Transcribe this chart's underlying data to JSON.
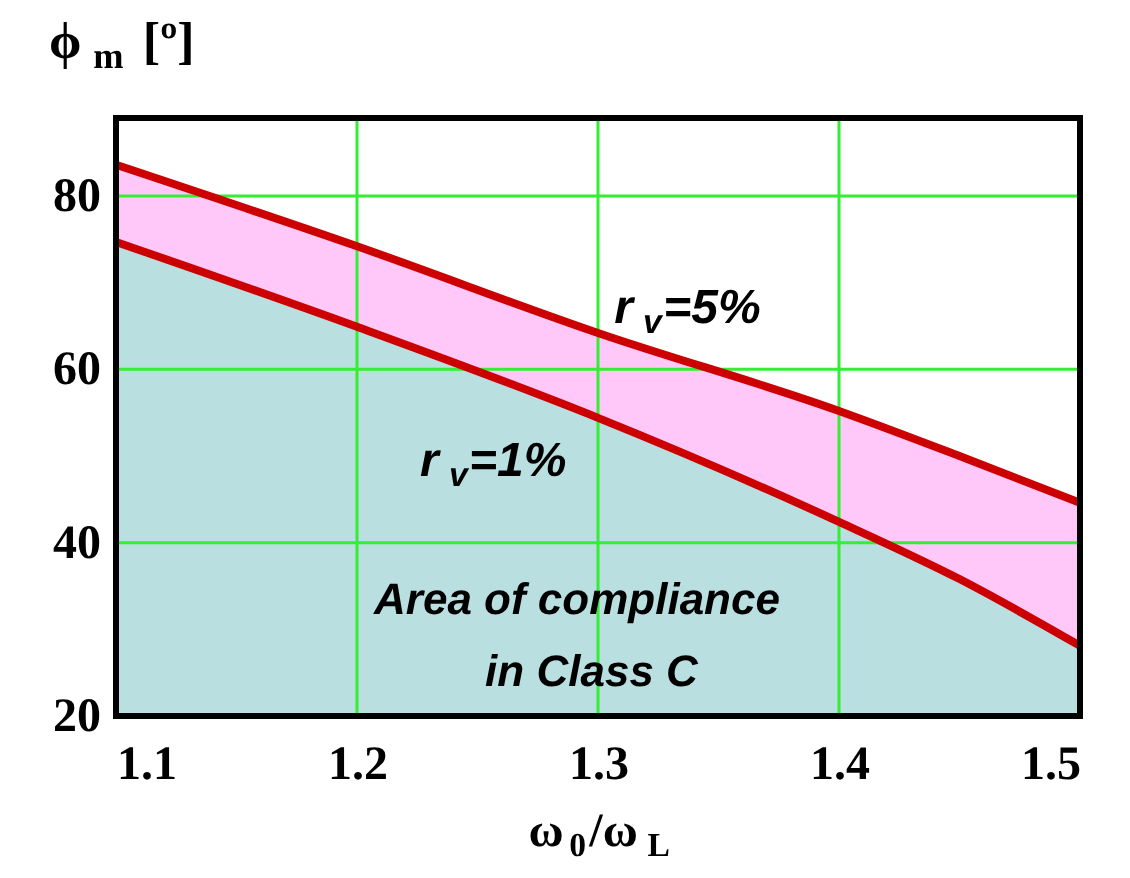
{
  "chart_data": {
    "type": "area",
    "xlabel": "ω$_{0}$/ω$_{L}$",
    "ylabel": "ϕ$_{m}$ [º]",
    "x": [
      1.1,
      1.2,
      1.3,
      1.4,
      1.45,
      1.5
    ],
    "series": [
      {
        "name": "r$_{v}$=5%",
        "color": "#ffc8f8",
        "values": [
          83.6,
          74.2,
          64.2,
          55.2,
          50.0,
          44.6
        ]
      },
      {
        "name": "r$_{v}$=1%",
        "color": "#b9dfe0",
        "values": [
          74.7,
          64.9,
          54.4,
          42.4,
          35.8,
          28.1
        ]
      }
    ],
    "annotations": [
      "Area of compliance\nin Class C"
    ],
    "xlim": [
      1.1,
      1.5
    ],
    "ylim": [
      20,
      89
    ],
    "xticks": [
      1.1,
      1.2,
      1.3,
      1.4,
      1.5
    ],
    "yticks": [
      20,
      40,
      60,
      80
    ],
    "grid": true
  }
}
